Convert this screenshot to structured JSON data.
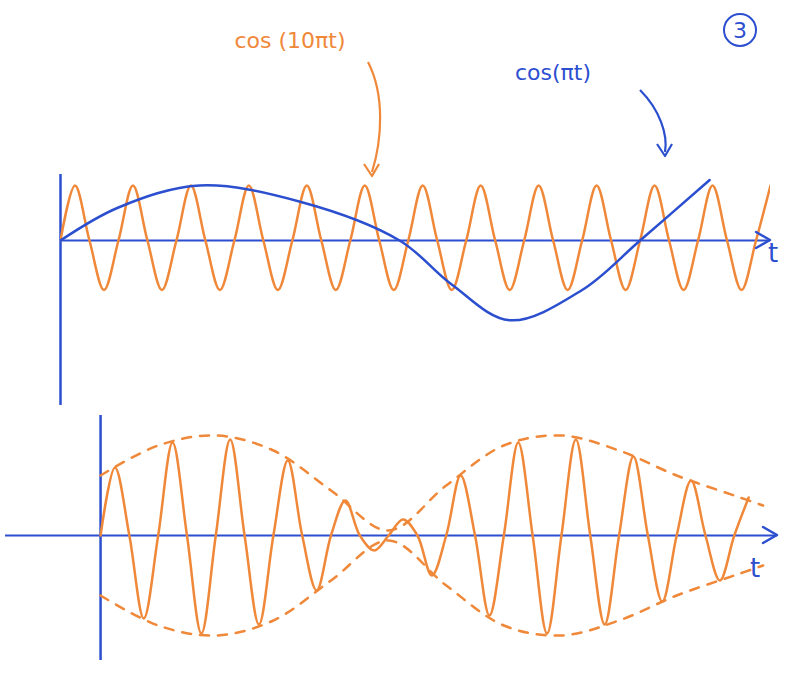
{
  "chart_data": [
    {
      "type": "line",
      "annotations": [
        "3"
      ],
      "xlabel": "t",
      "xlim": [
        0,
        2.45
      ],
      "ylim": [
        -3,
        1.2
      ],
      "tick_labels": false,
      "series": [
        {
          "name": "cos (10πt)",
          "color": "#f0883a",
          "line_style": "solid",
          "x": [
            0,
            0.05,
            0.1,
            0.15,
            0.2,
            0.25,
            0.3,
            0.35,
            0.4,
            0.45,
            0.5,
            0.55,
            0.6,
            0.65,
            0.7,
            0.75,
            0.8,
            0.85,
            0.9,
            0.95,
            1,
            1.05,
            1.1,
            1.15,
            1.2,
            1.25,
            1.3,
            1.35,
            1.4,
            1.45,
            1.5,
            1.55,
            1.6,
            1.65,
            1.7,
            1.75,
            1.8,
            1.85,
            1.9,
            1.95,
            2,
            2.05,
            2.1,
            2.15,
            2.2,
            2.25,
            2.3,
            2.35,
            2.4,
            2.45
          ],
          "values": [
            0,
            1,
            0,
            -0.9,
            0,
            1,
            0,
            -0.9,
            0,
            1,
            0,
            -0.9,
            0,
            1,
            0,
            -0.9,
            0,
            1,
            0,
            -0.9,
            0,
            1,
            0,
            -0.9,
            0,
            1,
            0,
            -0.9,
            0,
            1,
            0,
            -0.9,
            0,
            1,
            0,
            -0.9,
            0,
            1,
            0,
            -0.9,
            0,
            1,
            0,
            -0.9,
            0,
            1,
            0,
            -0.9,
            0,
            1
          ]
        },
        {
          "name": "cos(πt)",
          "color": "#2b4fcf",
          "line_style": "solid",
          "x": [
            0,
            0.2,
            0.48,
            0.83,
            1.17,
            1.35,
            1.55,
            1.8,
            2.0,
            2.24
          ],
          "values": [
            0,
            0.6,
            1,
            0.7,
            0,
            -0.8,
            -1.45,
            -0.9,
            0,
            1.1
          ]
        }
      ]
    },
    {
      "type": "line",
      "xlabel": "t",
      "xlim": [
        -0.33,
        2.35
      ],
      "ylim": [
        -1.25,
        1.2
      ],
      "tick_labels": false,
      "series": [
        {
          "color": "#f0883a",
          "line_style": "solid",
          "x": [
            0,
            0.05,
            0.1,
            0.15,
            0.2,
            0.25,
            0.3,
            0.35,
            0.4,
            0.45,
            0.5,
            0.55,
            0.6,
            0.65,
            0.7,
            0.75,
            0.8,
            0.85,
            0.9,
            0.95,
            1,
            1.05,
            1.1,
            1.15,
            1.2,
            1.25,
            1.3,
            1.35,
            1.4,
            1.45,
            1.5,
            1.55,
            1.6,
            1.65,
            1.7,
            1.75,
            1.8,
            1.85,
            1.9,
            1.95,
            2,
            2.05,
            2.1,
            2.15,
            2.2,
            2.25
          ],
          "values": [
            0,
            0.68,
            0,
            -0.83,
            0,
            0.93,
            0,
            -0.98,
            0,
            0.96,
            0,
            -0.89,
            0,
            0.75,
            0,
            -0.55,
            0,
            0.35,
            0,
            -0.15,
            0,
            0.16,
            0,
            -0.4,
            0,
            0.6,
            0,
            -0.8,
            0,
            0.93,
            0,
            -0.98,
            0,
            0.96,
            0,
            -0.89,
            0,
            0.79,
            0,
            -0.66,
            0,
            0.55,
            0,
            -0.45,
            0,
            0.38
          ]
        },
        {
          "color": "#f0883a",
          "line_style": "dashed",
          "x": [
            0,
            0.2,
            0.4,
            0.6,
            0.8,
            1.0,
            1.2,
            1.4,
            1.6,
            1.8,
            2.0,
            2.2,
            2.3
          ],
          "values": [
            0.6,
            0.9,
            1.0,
            0.85,
            0.45,
            0.05,
            0.5,
            0.9,
            1.0,
            0.85,
            0.6,
            0.4,
            0.3
          ]
        },
        {
          "color": "#f0883a",
          "line_style": "dashed",
          "x": [
            0,
            0.2,
            0.4,
            0.6,
            0.8,
            1.0,
            1.2,
            1.4,
            1.6,
            1.8,
            2.0,
            2.2,
            2.3
          ],
          "values": [
            -0.6,
            -0.9,
            -1.0,
            -0.85,
            -0.45,
            -0.05,
            -0.5,
            -0.9,
            -1.0,
            -0.85,
            -0.6,
            -0.4,
            -0.3
          ]
        }
      ]
    }
  ]
}
